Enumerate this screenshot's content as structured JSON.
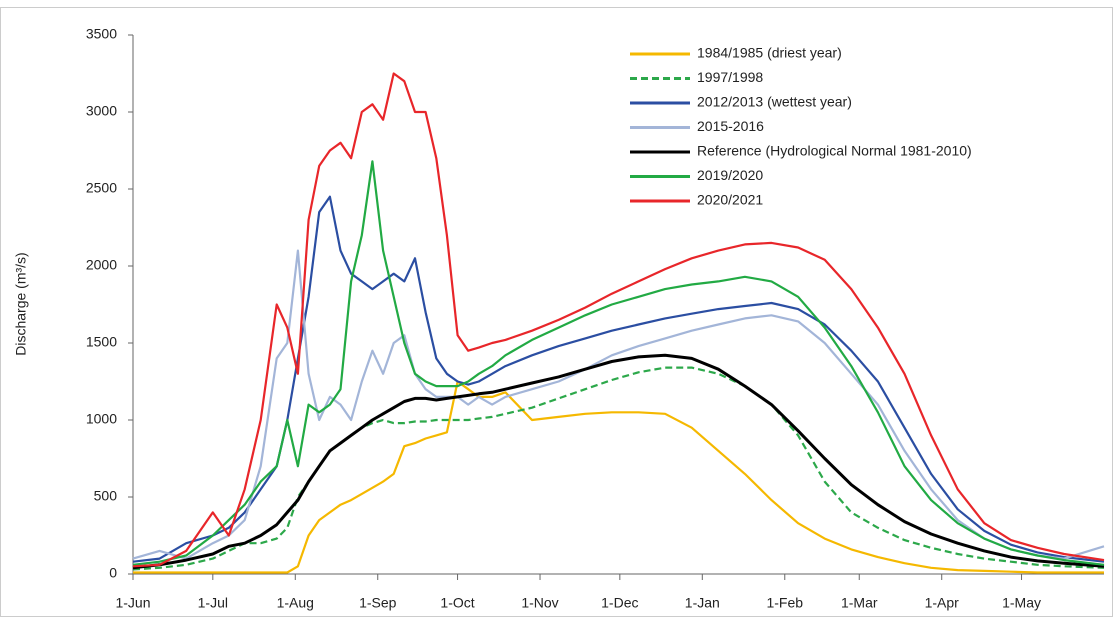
{
  "chart_data": {
    "type": "line",
    "y_label": "Discharge (m³/s)",
    "x": [
      0,
      10,
      20,
      30,
      36,
      42,
      48,
      54,
      58,
      62,
      66,
      70,
      74,
      78,
      82,
      86,
      90,
      94,
      98,
      102,
      106,
      110,
      114,
      118,
      122,
      126,
      130,
      135,
      140,
      150,
      160,
      170,
      180,
      190,
      200,
      210,
      220,
      230,
      240,
      250,
      260,
      270,
      280,
      290,
      300,
      310,
      320,
      330,
      340,
      350,
      365
    ],
    "xlim": [
      0,
      365
    ],
    "xticks": [
      {
        "value": 0,
        "label": "1-Jun"
      },
      {
        "value": 30,
        "label": "1-Jul"
      },
      {
        "value": 61,
        "label": "1-Aug"
      },
      {
        "value": 92,
        "label": "1-Sep"
      },
      {
        "value": 122,
        "label": "1-Oct"
      },
      {
        "value": 153,
        "label": "1-Nov"
      },
      {
        "value": 183,
        "label": "1-Dec"
      },
      {
        "value": 214,
        "label": "1-Jan"
      },
      {
        "value": 245,
        "label": "1-Feb"
      },
      {
        "value": 273,
        "label": "1-Mar"
      },
      {
        "value": 304,
        "label": "1-Apr"
      },
      {
        "value": 334,
        "label": "1-May"
      }
    ],
    "ylim": [
      0,
      3500
    ],
    "yticks": [
      0,
      500,
      1000,
      1500,
      2000,
      2500,
      3000,
      3500
    ],
    "grid": false,
    "legend": "upper right",
    "series": [
      {
        "name": "1984/1985 (driest year)",
        "color": "#f5b800",
        "dash": false,
        "values": [
          10,
          10,
          10,
          10,
          10,
          10,
          10,
          10,
          10,
          50,
          250,
          350,
          400,
          450,
          480,
          520,
          560,
          600,
          650,
          830,
          850,
          880,
          900,
          920,
          1250,
          1200,
          1150,
          1150,
          1180,
          1000,
          1020,
          1040,
          1050,
          1050,
          1040,
          950,
          800,
          650,
          480,
          330,
          230,
          160,
          110,
          70,
          40,
          25,
          20,
          15,
          10,
          10,
          10
        ]
      },
      {
        "name": "1997/1998",
        "color": "#2ca84a",
        "dash": true,
        "values": [
          30,
          40,
          60,
          100,
          150,
          200,
          200,
          230,
          300,
          500,
          600,
          700,
          800,
          850,
          900,
          950,
          980,
          1000,
          980,
          980,
          990,
          990,
          1000,
          1000,
          1000,
          1000,
          1010,
          1020,
          1040,
          1080,
          1140,
          1200,
          1260,
          1310,
          1340,
          1340,
          1300,
          1220,
          1100,
          900,
          600,
          400,
          300,
          220,
          170,
          130,
          100,
          80,
          60,
          50,
          40
        ]
      },
      {
        "name": "2012/2013 (wettest year)",
        "color": "#2b4ea2",
        "dash": false,
        "values": [
          80,
          100,
          200,
          250,
          300,
          400,
          550,
          700,
          1000,
          1400,
          1800,
          2350,
          2450,
          2100,
          1950,
          1900,
          1850,
          1900,
          1950,
          1900,
          2050,
          1700,
          1400,
          1300,
          1250,
          1230,
          1250,
          1300,
          1350,
          1420,
          1480,
          1530,
          1580,
          1620,
          1660,
          1690,
          1720,
          1740,
          1760,
          1720,
          1620,
          1450,
          1250,
          950,
          650,
          420,
          280,
          190,
          140,
          110,
          80
        ]
      },
      {
        "name": "2015-2016",
        "color": "#a3b5d8",
        "dash": false,
        "values": [
          100,
          150,
          100,
          200,
          250,
          350,
          700,
          1400,
          1500,
          2100,
          1300,
          1000,
          1150,
          1100,
          1000,
          1250,
          1450,
          1300,
          1500,
          1550,
          1300,
          1200,
          1150,
          1150,
          1150,
          1100,
          1150,
          1100,
          1150,
          1200,
          1250,
          1330,
          1420,
          1480,
          1530,
          1580,
          1620,
          1660,
          1680,
          1640,
          1500,
          1300,
          1100,
          800,
          550,
          350,
          230,
          160,
          120,
          100,
          180
        ]
      },
      {
        "name": "Reference (Hydrological Normal 1981-2010)",
        "color": "#000000",
        "dash": false,
        "values": [
          40,
          60,
          90,
          130,
          180,
          200,
          250,
          320,
          400,
          480,
          600,
          700,
          800,
          850,
          900,
          950,
          1000,
          1040,
          1080,
          1120,
          1140,
          1140,
          1130,
          1140,
          1150,
          1160,
          1170,
          1180,
          1200,
          1240,
          1280,
          1330,
          1380,
          1410,
          1420,
          1400,
          1330,
          1220,
          1100,
          930,
          750,
          580,
          450,
          340,
          260,
          200,
          150,
          110,
          85,
          70,
          50
        ]
      },
      {
        "name": "2019/2020",
        "color": "#22aa44",
        "dash": false,
        "values": [
          60,
          80,
          120,
          250,
          350,
          450,
          600,
          700,
          1000,
          700,
          1100,
          1050,
          1100,
          1200,
          1900,
          2200,
          2680,
          2100,
          1800,
          1500,
          1300,
          1250,
          1220,
          1220,
          1220,
          1250,
          1300,
          1350,
          1420,
          1520,
          1600,
          1680,
          1750,
          1800,
          1850,
          1880,
          1900,
          1930,
          1900,
          1800,
          1600,
          1350,
          1050,
          700,
          480,
          330,
          230,
          160,
          120,
          90,
          60
        ]
      },
      {
        "name": "2020/2021",
        "color": "#e8262a",
        "dash": false,
        "values": [
          50,
          60,
          150,
          400,
          250,
          550,
          1000,
          1750,
          1600,
          1300,
          2300,
          2650,
          2750,
          2800,
          2700,
          3000,
          3050,
          2950,
          3250,
          3200,
          3000,
          3000,
          2700,
          2200,
          1550,
          1450,
          1470,
          1500,
          1520,
          1580,
          1650,
          1730,
          1820,
          1900,
          1980,
          2050,
          2100,
          2140,
          2150,
          2120,
          2040,
          1850,
          1600,
          1300,
          900,
          550,
          330,
          220,
          170,
          130,
          90
        ]
      }
    ]
  }
}
